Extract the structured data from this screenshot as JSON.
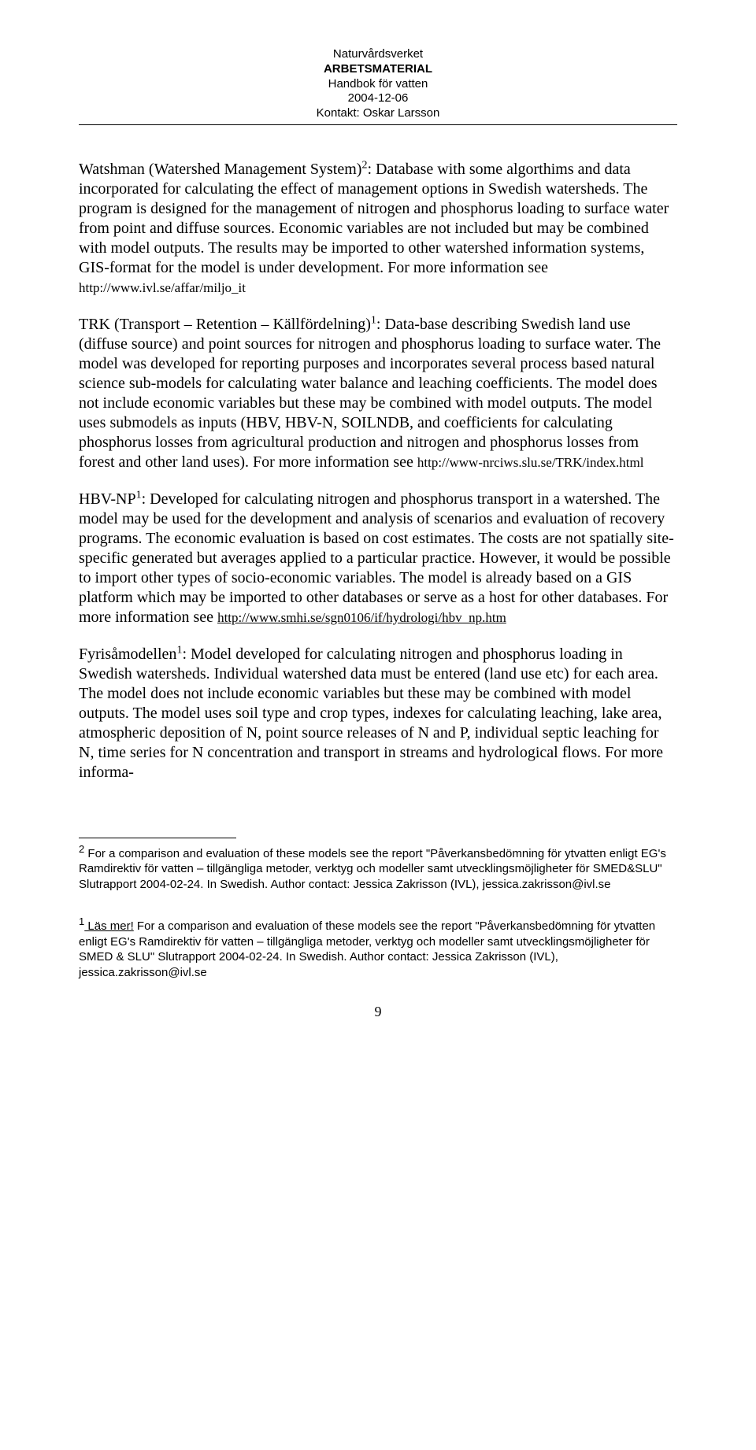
{
  "header": {
    "line1": "Naturvårdsverket",
    "line2": "ARBETSMATERIAL",
    "line3": "Handbok för vatten",
    "line4": "2004-12-06",
    "line5": "Kontakt: Oskar Larsson"
  },
  "para1": {
    "lead": "Watshman (Watershed Management System)",
    "sup": "2",
    "rest": ": Database with some algorthims and data incorporated for calculating the effect of management options in Swedish watersheds. The program is designed for the management of nitrogen and phosphorus loading to surface water from point and diffuse sources. Economic variables are not included but may be combined with model outputs. The results may be imported to other watershed information systems, GIS-format for the model is under development. For more information see ",
    "url": "http://www.ivl.se/affar/miljo_it"
  },
  "para2": {
    "lead": "TRK (Transport – Retention – Källfördelning)",
    "sup": "1",
    "rest": ": Data-base describing Swedish land use (diffuse source) and point sources for nitrogen and phosphorus loading to surface water. The model was developed for reporting purposes and incorporates several process based natural science sub-models for calculating water balance and leaching coefficients. The model does not include economic variables but these may be combined with model outputs. The model uses submodels as inputs (HBV, HBV-N, SOILNDB, and coefficients for calculating phosphorus losses from agricultural production and nitrogen and phosphorus losses from forest and other land uses). For more information see ",
    "url": "http://www-nrciws.slu.se/TRK/index.html"
  },
  "para3": {
    "lead": "HBV-NP",
    "sup": "1",
    "rest": ": Developed for calculating nitrogen and phosphorus transport in a watershed. The model may be used for the development and analysis of scenarios and evaluation of recovery programs. The economic evaluation is based on cost estimates. The costs are not spatially site-specific generated but averages applied to a particular practice. However, it would be possible to import other types of socio-economic variables. The model is already based on a GIS platform which may be imported to other databases or serve as a host for other databases. For more information see ",
    "url": "http://www.smhi.se/sgn0106/if/hydrologi/hbv_np.htm"
  },
  "para4": {
    "lead": "Fyrisåmodellen",
    "sup": "1",
    "rest": ": Model developed for calculating nitrogen and phosphorus loading in Swedish watersheds. Individual watershed data must be entered (land use etc) for each area. The model does not include economic variables but these may be combined with model outputs. The model uses soil type and crop types, indexes for calculating leaching, lake area, atmospheric deposition of N, point source releases of N and P, individual septic leaching for N, time series for N concentration and transport in streams and hydrological flows. For more informa-"
  },
  "footnote2": {
    "marker": "2",
    "text": " For a comparison and evaluation of these models see the report \"Påverkansbedömning för ytvatten enligt EG's Ramdirektiv för vatten – tillgängliga metoder, verktyg och modeller samt utvecklingsmöjligheter för SMED&SLU\" Slutrapport 2004-02-24. In Swedish. Author contact: Jessica Zakrisson (IVL), jessica.zakrisson@ivl.se"
  },
  "footnote1": {
    "marker": "1",
    "lasmer": " Läs mer!",
    "text": " For a comparison and evaluation of these models see the report \"Påverkansbedömning för ytvatten enligt EG's Ramdirektiv för vatten – tillgängliga metoder, verktyg och modeller samt utvecklingsmöjligheter för SMED & SLU\" Slutrapport 2004-02-24. In Swedish. Author contact: Jessica Zakrisson (IVL), jessica.zakrisson@ivl.se"
  },
  "page_number": "9"
}
